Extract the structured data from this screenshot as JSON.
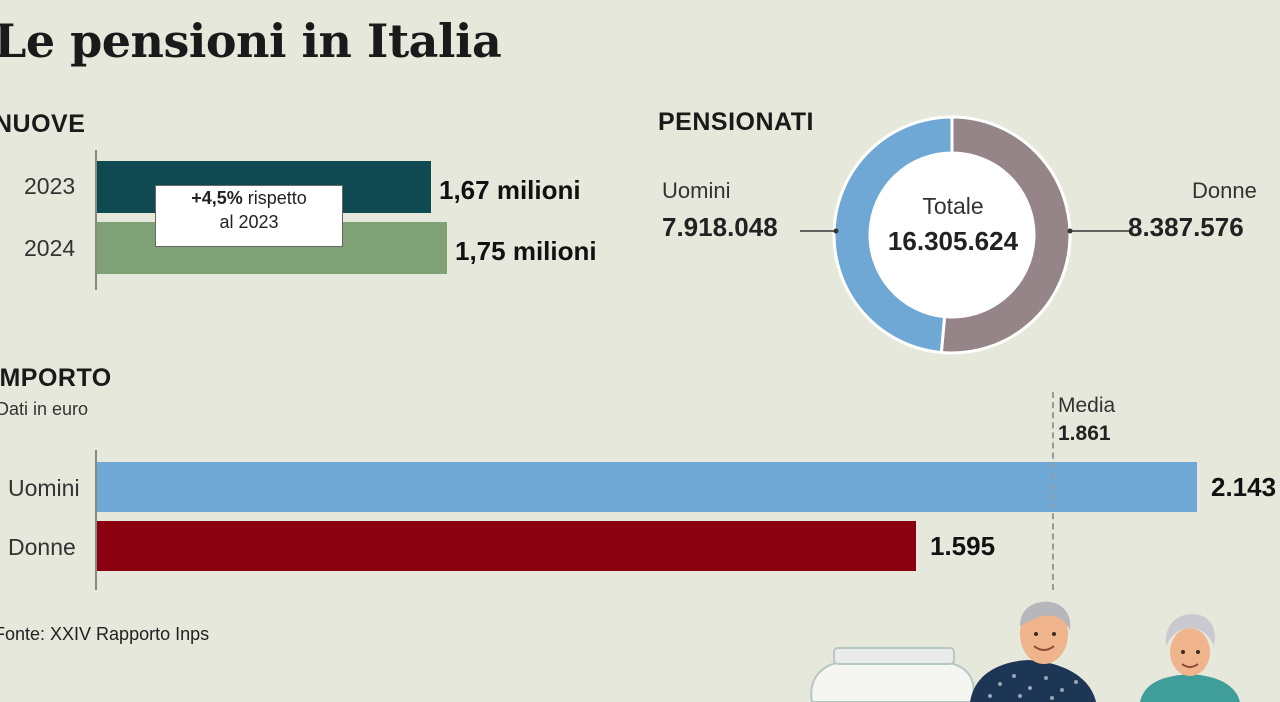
{
  "title": "Le pensioni in Italia",
  "source": "Fonte: XXIV Rapporto Inps",
  "chart_data": [
    {
      "type": "bar",
      "orientation": "horizontal",
      "title": "NUOVE",
      "categories": [
        "2023",
        "2024"
      ],
      "values": [
        1.67,
        1.75
      ],
      "value_labels": [
        "1,67 milioni",
        "1,75 milioni"
      ],
      "unit": "milioni",
      "colors": [
        "#0f4a52",
        "#7ea276"
      ],
      "annotation": {
        "bold": "+4,5%",
        "line1_rest": " rispetto",
        "line2": "al 2023"
      }
    },
    {
      "type": "pie",
      "donut": true,
      "title": "PENSIONATI",
      "categories": [
        "Uomini",
        "Donne"
      ],
      "values": [
        7918048,
        8387576
      ],
      "value_labels": [
        "7.918.048",
        "8.387.576"
      ],
      "colors": [
        "#6fa8d4",
        "#968588"
      ],
      "center_label": "Totale",
      "center_value": "16.305.624"
    },
    {
      "type": "bar",
      "orientation": "horizontal",
      "title": "IMPORTO",
      "subtitle": "Dati in euro",
      "categories": [
        "Uomini",
        "Donne"
      ],
      "values": [
        2143,
        1595
      ],
      "value_labels": [
        "2.143",
        "1.595"
      ],
      "colors": [
        "#6fa8d4",
        "#8b0011"
      ],
      "reference_line": {
        "label": "Media",
        "value": 1861,
        "value_label": "1.861"
      }
    }
  ]
}
